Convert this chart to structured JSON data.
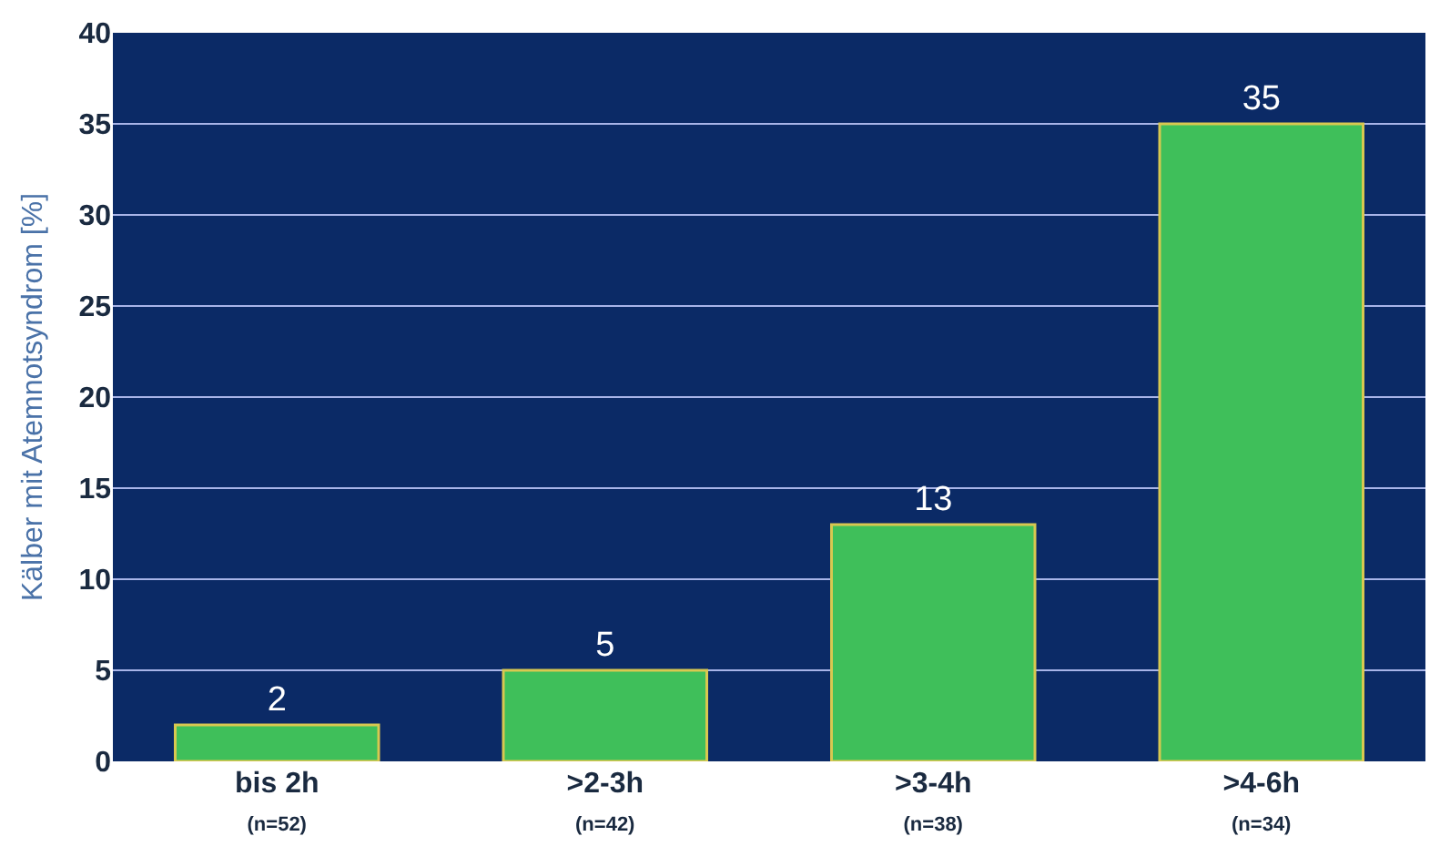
{
  "chart_data": {
    "type": "bar",
    "ylabel": "Kälber mit Atemnotsyndrom [%]",
    "categories": [
      "bis 2h\n(n=52)",
      ">2-3h\n(n=42)",
      ">3-4h\n(n=38)",
      ">4-6h\n(n=34)"
    ],
    "values": [
      2,
      5,
      13,
      35
    ],
    "color": "#3fbf5a",
    "ylim": [
      0,
      40
    ],
    "yticks": [
      0,
      5,
      10,
      15,
      20,
      25,
      30,
      35,
      40
    ],
    "grid": "y",
    "data_labels": true
  }
}
